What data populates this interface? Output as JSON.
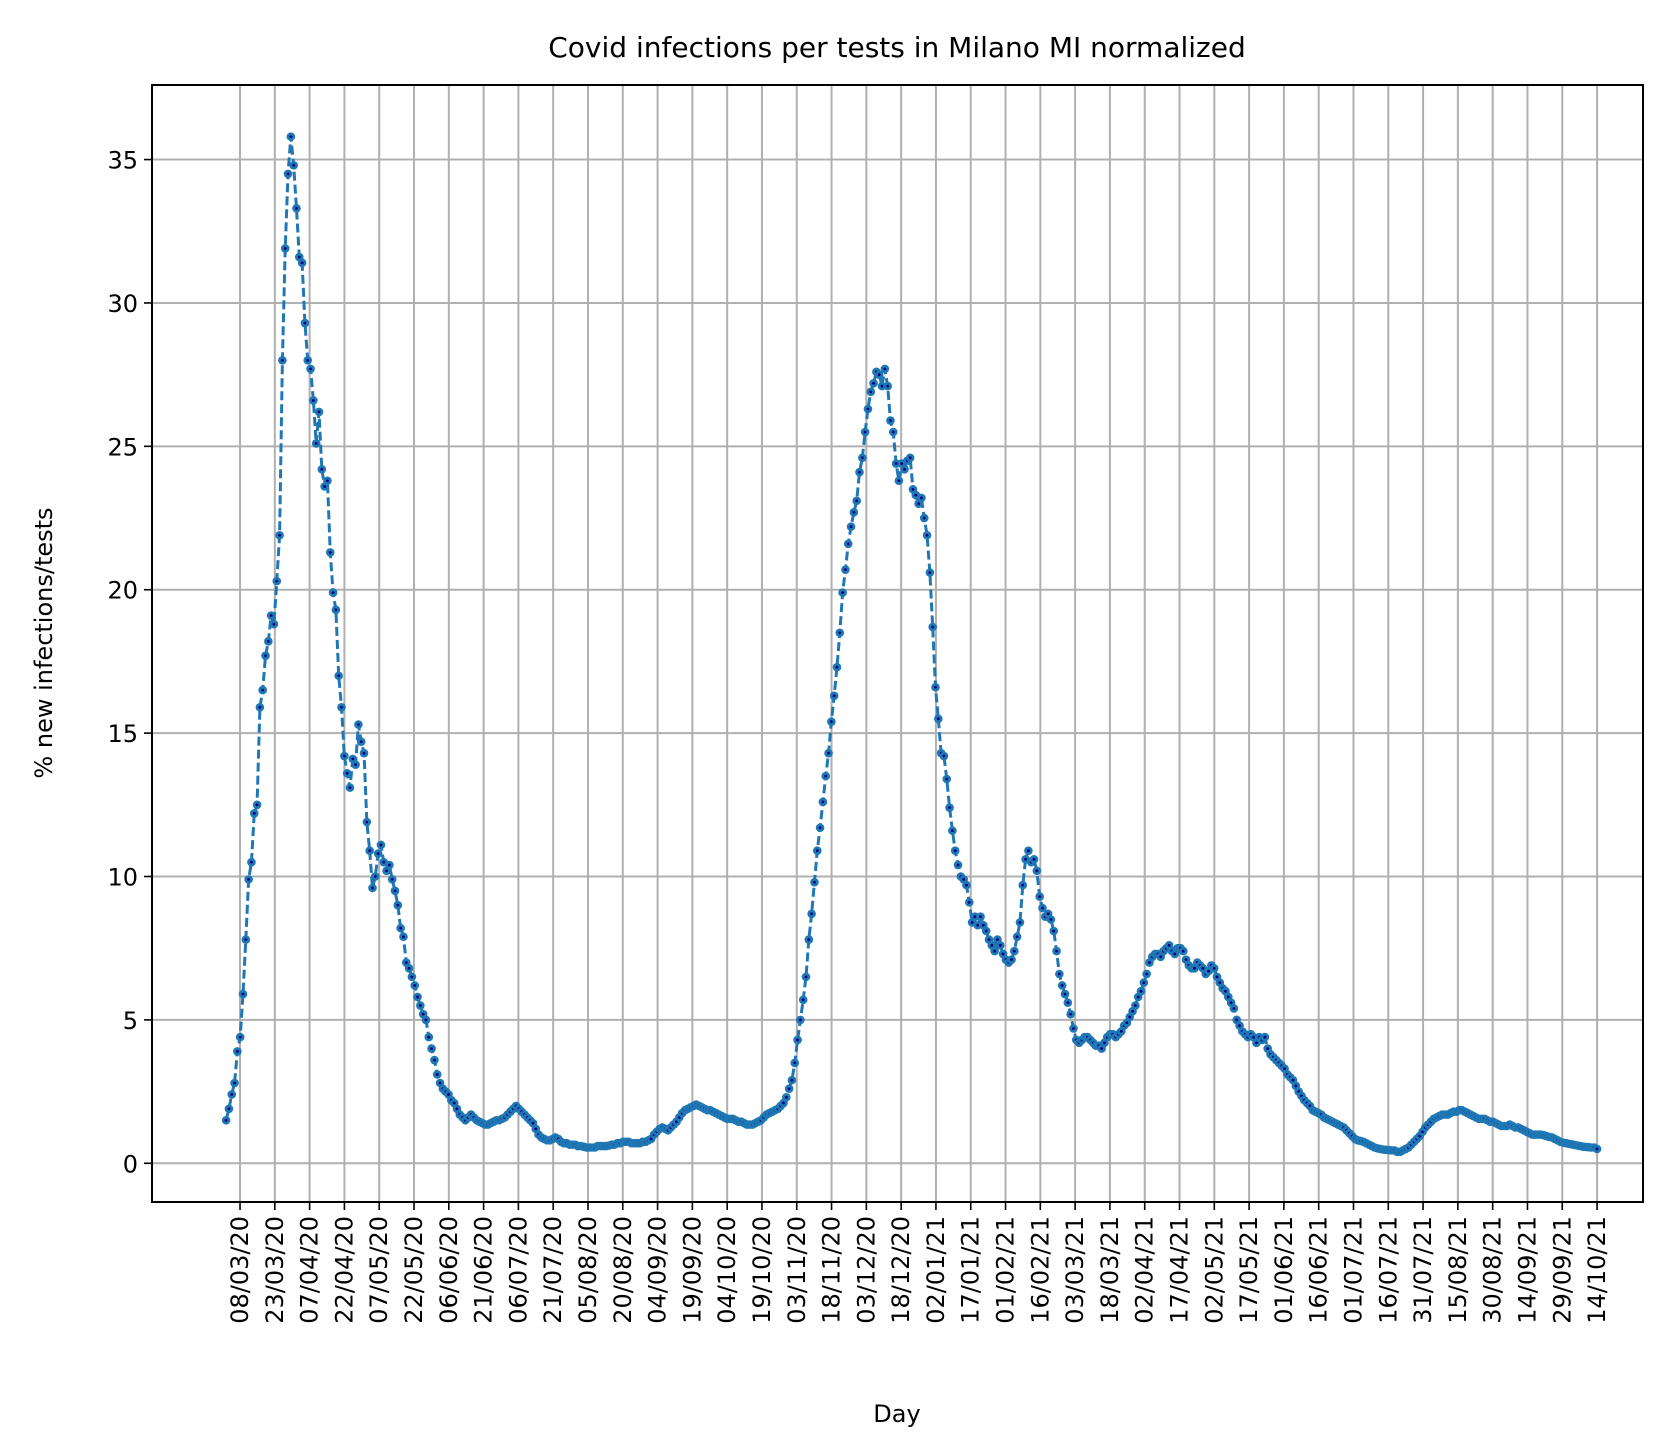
{
  "chart_data": {
    "type": "line",
    "title": "Covid infections per tests in Milano MI normalized",
    "xlabel": "Day",
    "ylabel": "% new infections/tests",
    "ylim": [
      -1.35,
      37.6
    ],
    "yticks": [
      0,
      5,
      10,
      15,
      20,
      25,
      30,
      35
    ],
    "grid": true,
    "line_style": "dashed",
    "marker": "dot",
    "colors": {
      "line": "#1f77b4",
      "marker_center": "#000080",
      "grid": "#b0b0b0"
    },
    "x_start": "02/03/20",
    "x_end": "14/10/21",
    "xtick_labels": [
      "08/03/20",
      "23/03/20",
      "07/04/20",
      "22/04/20",
      "07/05/20",
      "22/05/20",
      "06/06/20",
      "21/06/20",
      "06/07/20",
      "21/07/20",
      "05/08/20",
      "20/08/20",
      "04/09/20",
      "19/09/20",
      "04/10/20",
      "19/10/20",
      "03/11/20",
      "18/11/20",
      "03/12/20",
      "18/12/20",
      "02/01/21",
      "17/01/21",
      "01/02/21",
      "16/02/21",
      "03/03/21",
      "18/03/21",
      "02/04/21",
      "17/04/21",
      "02/05/21",
      "17/05/21",
      "01/06/21",
      "16/06/21",
      "01/07/21",
      "16/07/21",
      "31/07/21",
      "15/08/21",
      "30/08/21",
      "14/09/21",
      "29/09/21",
      "14/10/21"
    ],
    "series": [
      {
        "values": [
          1.5,
          1.9,
          2.4,
          2.8,
          3.9,
          4.4,
          5.9,
          7.8,
          9.9,
          10.5,
          12.2,
          12.5,
          15.9,
          16.5,
          17.7,
          18.2,
          19.1,
          18.8,
          20.3,
          21.9,
          28.0,
          31.9,
          34.5,
          35.8,
          34.8,
          33.3,
          31.6,
          31.4,
          29.3,
          28.0,
          27.7,
          26.6,
          25.1,
          26.2,
          24.2,
          23.6,
          23.8,
          21.3,
          19.9,
          19.3,
          17.0,
          15.9,
          14.2,
          13.6,
          13.1,
          14.1,
          13.9,
          15.3,
          14.7,
          14.3,
          11.9,
          10.9,
          9.6,
          10.0,
          10.8,
          11.1,
          10.5,
          10.2,
          10.4,
          9.9,
          9.5,
          9.0,
          8.2,
          7.9,
          7.0,
          6.8,
          6.5,
          6.2,
          5.8,
          5.5,
          5.2,
          5.0,
          4.4,
          4.0,
          3.6,
          3.1,
          2.8,
          2.6,
          2.5,
          2.4,
          2.2,
          2.1,
          1.9,
          1.7,
          1.6,
          1.5,
          1.6,
          1.7,
          1.6,
          1.5,
          1.45,
          1.4,
          1.35,
          1.35,
          1.4,
          1.45,
          1.5,
          1.5,
          1.55,
          1.6,
          1.7,
          1.8,
          1.9,
          2.0,
          1.9,
          1.8,
          1.7,
          1.6,
          1.5,
          1.4,
          1.2,
          1.0,
          0.9,
          0.85,
          0.8,
          0.8,
          0.85,
          0.9,
          0.85,
          0.75,
          0.7,
          0.7,
          0.65,
          0.65,
          0.65,
          0.6,
          0.6,
          0.58,
          0.55,
          0.55,
          0.55,
          0.55,
          0.6,
          0.6,
          0.6,
          0.6,
          0.62,
          0.65,
          0.65,
          0.7,
          0.7,
          0.75,
          0.75,
          0.75,
          0.7,
          0.7,
          0.7,
          0.7,
          0.75,
          0.75,
          0.8,
          0.85,
          1.0,
          1.1,
          1.2,
          1.25,
          1.2,
          1.15,
          1.25,
          1.35,
          1.45,
          1.6,
          1.75,
          1.85,
          1.9,
          1.95,
          2.0,
          2.05,
          2.0,
          1.95,
          1.9,
          1.85,
          1.85,
          1.8,
          1.75,
          1.7,
          1.65,
          1.6,
          1.55,
          1.55,
          1.55,
          1.5,
          1.45,
          1.45,
          1.4,
          1.35,
          1.35,
          1.35,
          1.4,
          1.45,
          1.5,
          1.6,
          1.7,
          1.75,
          1.8,
          1.85,
          1.9,
          2.0,
          2.1,
          2.3,
          2.6,
          2.9,
          3.5,
          4.3,
          5.0,
          5.7,
          6.5,
          7.8,
          8.7,
          9.8,
          10.9,
          11.7,
          12.6,
          13.5,
          14.3,
          15.4,
          16.3,
          17.3,
          18.5,
          19.9,
          20.7,
          21.6,
          22.2,
          22.7,
          23.1,
          24.1,
          24.6,
          25.5,
          26.3,
          26.9,
          27.2,
          27.6,
          27.5,
          27.1,
          27.7,
          27.1,
          25.9,
          25.5,
          24.4,
          23.8,
          24.4,
          24.2,
          24.5,
          24.6,
          23.5,
          23.3,
          23.0,
          23.2,
          22.5,
          21.9,
          20.6,
          18.7,
          16.6,
          15.5,
          14.3,
          14.2,
          13.4,
          12.4,
          11.6,
          10.9,
          10.4,
          10.0,
          9.9,
          9.7,
          9.1,
          8.4,
          8.6,
          8.3,
          8.6,
          8.3,
          8.1,
          7.8,
          7.6,
          7.4,
          7.8,
          7.6,
          7.3,
          7.1,
          7.0,
          7.1,
          7.4,
          7.9,
          8.4,
          9.7,
          10.6,
          10.9,
          10.5,
          10.6,
          10.2,
          9.3,
          8.9,
          8.6,
          8.7,
          8.5,
          8.1,
          7.4,
          6.6,
          6.2,
          5.9,
          5.6,
          5.2,
          4.7,
          4.3,
          4.2,
          4.3,
          4.4,
          4.4,
          4.3,
          4.2,
          4.1,
          4.1,
          4.0,
          4.2,
          4.4,
          4.5,
          4.5,
          4.4,
          4.5,
          4.6,
          4.8,
          4.9,
          5.1,
          5.3,
          5.5,
          5.8,
          6.0,
          6.3,
          6.6,
          7.0,
          7.2,
          7.3,
          7.3,
          7.2,
          7.4,
          7.5,
          7.6,
          7.4,
          7.3,
          7.5,
          7.5,
          7.4,
          7.1,
          6.9,
          6.8,
          6.8,
          7.0,
          6.9,
          6.8,
          6.6,
          6.7,
          6.9,
          6.8,
          6.5,
          6.3,
          6.1,
          6.0,
          5.8,
          5.6,
          5.4,
          5.0,
          4.8,
          4.6,
          4.5,
          4.4,
          4.5,
          4.4,
          4.2,
          4.4,
          4.3,
          4.4,
          4.0,
          3.8,
          3.7,
          3.6,
          3.5,
          3.4,
          3.3,
          3.1,
          3.0,
          2.9,
          2.7,
          2.5,
          2.35,
          2.2,
          2.1,
          2.0,
          1.85,
          1.8,
          1.75,
          1.7,
          1.6,
          1.55,
          1.5,
          1.45,
          1.4,
          1.35,
          1.3,
          1.25,
          1.15,
          1.05,
          0.95,
          0.85,
          0.8,
          0.78,
          0.75,
          0.7,
          0.65,
          0.6,
          0.55,
          0.52,
          0.5,
          0.48,
          0.47,
          0.46,
          0.45,
          0.45,
          0.4,
          0.4,
          0.45,
          0.5,
          0.55,
          0.65,
          0.75,
          0.85,
          0.95,
          1.1,
          1.25,
          1.35,
          1.45,
          1.55,
          1.6,
          1.65,
          1.7,
          1.7,
          1.7,
          1.75,
          1.8,
          1.8,
          1.85,
          1.85,
          1.8,
          1.75,
          1.7,
          1.65,
          1.6,
          1.55,
          1.55,
          1.55,
          1.5,
          1.45,
          1.45,
          1.4,
          1.35,
          1.3,
          1.3,
          1.3,
          1.35,
          1.3,
          1.25,
          1.25,
          1.2,
          1.15,
          1.1,
          1.05,
          1.0,
          1.0,
          1.0,
          1.0,
          0.98,
          0.95,
          0.92,
          0.9,
          0.85,
          0.8,
          0.75,
          0.72,
          0.7,
          0.68,
          0.66,
          0.64,
          0.62,
          0.6,
          0.58,
          0.57,
          0.56,
          0.55,
          0.55,
          0.5
        ]
      }
    ]
  }
}
